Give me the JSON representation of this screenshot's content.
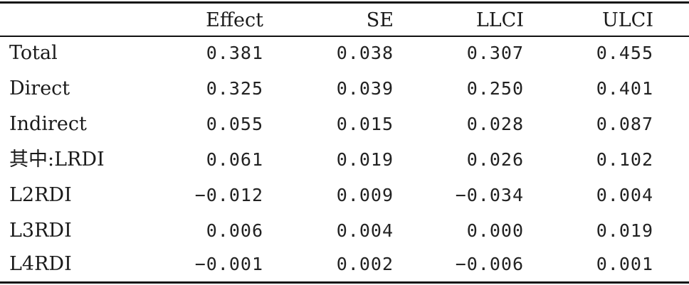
{
  "table": {
    "headers": [
      "",
      "Effect",
      "SE",
      "LLCI",
      "ULCI"
    ],
    "rows": [
      {
        "label": "Total",
        "effect": "0.381",
        "se": "0.038",
        "llci": "0.307",
        "ulci": "0.455"
      },
      {
        "label": "Direct",
        "effect": "0.325",
        "se": "0.039",
        "llci": "0.250",
        "ulci": "0.401"
      },
      {
        "label": "Indirect",
        "effect": "0.055",
        "se": "0.015",
        "llci": "0.028",
        "ulci": "0.087"
      },
      {
        "label": "其中:LRDI",
        "effect": "0.061",
        "se": "0.019",
        "llci": "0.026",
        "ulci": "0.102"
      },
      {
        "label": "L2RDI",
        "effect": "−0.012",
        "se": "0.009",
        "llci": "−0.034",
        "ulci": "0.004"
      },
      {
        "label": "L3RDI",
        "effect": "0.006",
        "se": "0.004",
        "llci": "0.000",
        "ulci": "0.019"
      },
      {
        "label": "L4RDI",
        "effect": "−0.001",
        "se": "0.002",
        "llci": "−0.006",
        "ulci": "0.001"
      }
    ]
  }
}
